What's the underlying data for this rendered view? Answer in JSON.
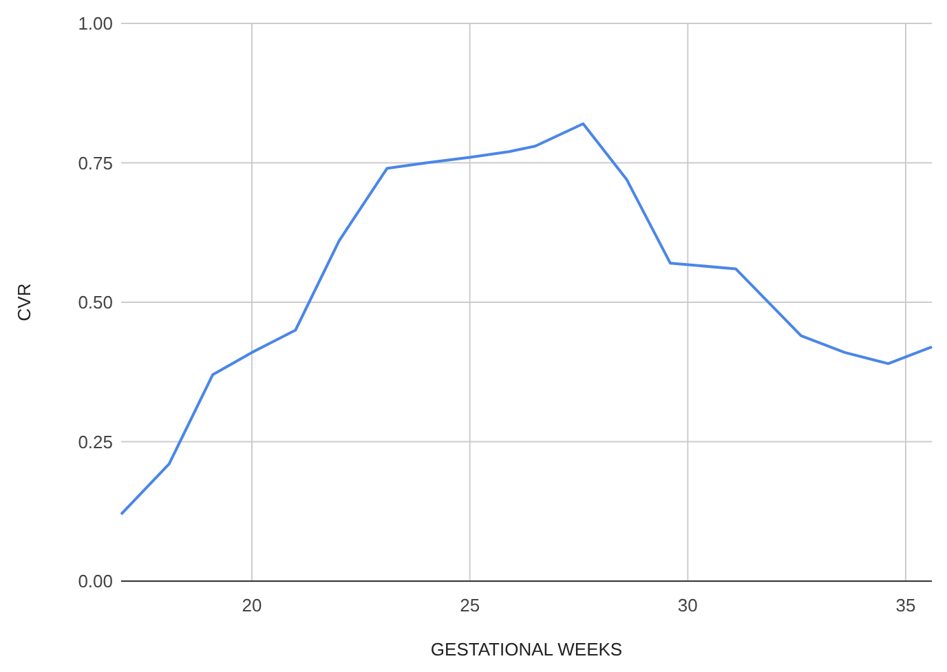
{
  "chart_data": {
    "type": "line",
    "xlabel": "GESTATIONAL WEEKS",
    "ylabel": "CVR",
    "x": [
      17,
      18.1,
      19.1,
      20,
      21,
      22,
      23.1,
      24,
      25,
      25.9,
      26.5,
      27.6,
      28.6,
      29.6,
      31.1,
      32.6,
      33.6,
      34.6,
      35.6
    ],
    "series": [
      {
        "color": "#4a86e8",
        "values": [
          0.12,
          0.21,
          0.37,
          0.41,
          0.45,
          0.61,
          0.74,
          0.75,
          0.76,
          0.77,
          0.78,
          0.82,
          0.72,
          0.57,
          0.56,
          0.44,
          0.41,
          0.39,
          0.42
        ]
      }
    ],
    "xlim": [
      17,
      35.6
    ],
    "xticks": [
      20,
      25,
      30,
      35
    ],
    "ylim": [
      0,
      1
    ],
    "yticks": [
      {
        "value": 0,
        "label": "0.00"
      },
      {
        "value": 0.25,
        "label": "0.25"
      },
      {
        "value": 0.5,
        "label": "0.50"
      },
      {
        "value": 0.75,
        "label": "0.75"
      },
      {
        "value": 1,
        "label": "1.00"
      }
    ],
    "grid": true,
    "marker": "none",
    "line_style": "solid"
  }
}
